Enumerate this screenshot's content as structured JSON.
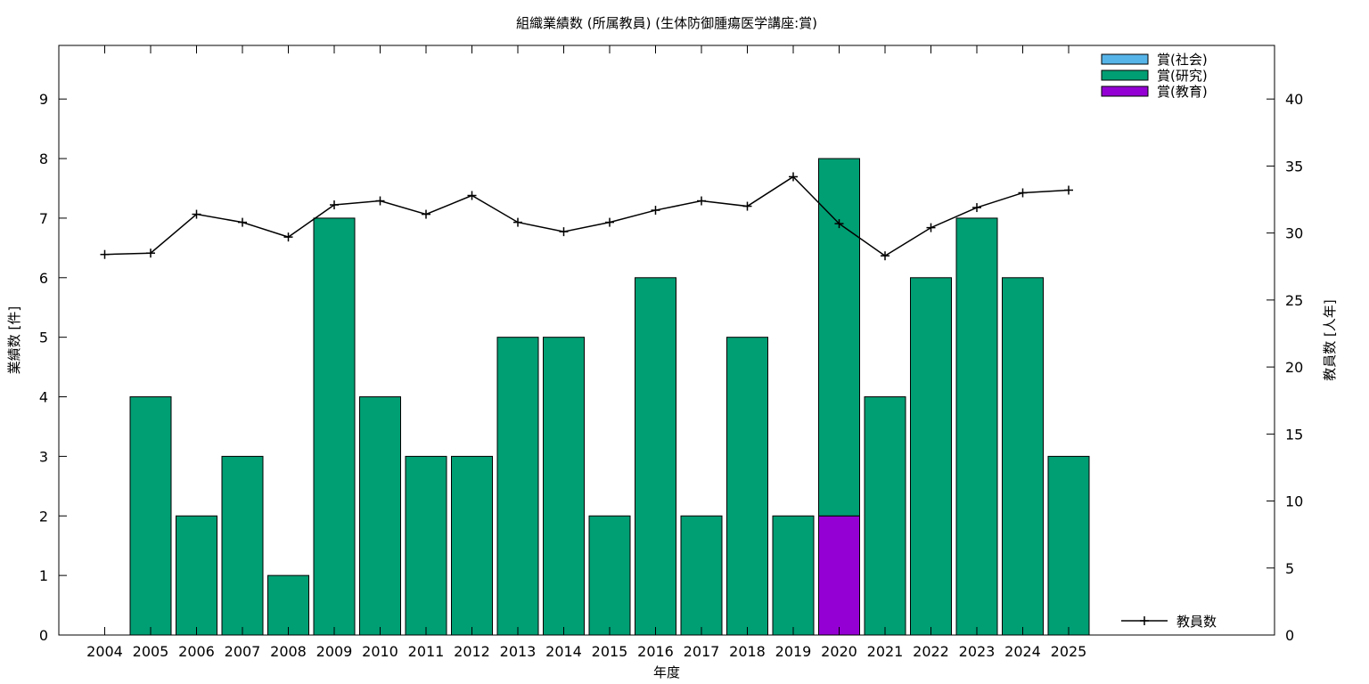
{
  "chart_data": {
    "type": "bar",
    "title": "組織業績数 (所属教員) (生体防御腫瘍医学講座:賞)",
    "xlabel": "年度",
    "ylabel": "業績数 [件]",
    "y2label": "教員数 [人年]",
    "categories": [
      "2004",
      "2005",
      "2006",
      "2007",
      "2008",
      "2009",
      "2010",
      "2011",
      "2012",
      "2013",
      "2014",
      "2015",
      "2016",
      "2017",
      "2018",
      "2019",
      "2020",
      "2021",
      "2022",
      "2023",
      "2024",
      "2025"
    ],
    "ylim": [
      0,
      9.9
    ],
    "y2lim": [
      0,
      44
    ],
    "yticks": [
      "0",
      "1",
      "2",
      "3",
      "4",
      "5",
      "6",
      "7",
      "8",
      "9"
    ],
    "y2ticks": [
      "0",
      "5",
      "10",
      "15",
      "20",
      "25",
      "30",
      "35",
      "40"
    ],
    "stacked": true,
    "series": [
      {
        "name": "賞(教育)",
        "color": "#9400d3",
        "values": [
          0,
          0,
          0,
          0,
          0,
          0,
          0,
          0,
          0,
          0,
          0,
          0,
          0,
          0,
          0,
          0,
          2,
          0,
          0,
          0,
          0,
          0
        ]
      },
      {
        "name": "賞(研究)",
        "color": "#009e73",
        "values": [
          0,
          4,
          2,
          3,
          1,
          7,
          4,
          3,
          3,
          5,
          5,
          2,
          6,
          2,
          5,
          2,
          6,
          4,
          6,
          7,
          6,
          3
        ]
      },
      {
        "name": "賞(社会)",
        "color": "#56b4e9",
        "values": [
          0,
          0,
          0,
          0,
          0,
          0,
          0,
          0,
          0,
          0,
          0,
          0,
          0,
          0,
          0,
          0,
          0,
          0,
          0,
          0,
          0,
          0
        ]
      }
    ],
    "legend_order": [
      "賞(社会)",
      "賞(研究)",
      "賞(教育)"
    ],
    "legend_placement": "top-right",
    "line_series": {
      "name": "教員数",
      "axis": "y2",
      "color": "#000000",
      "values": [
        28.4,
        28.5,
        31.4,
        30.8,
        29.7,
        32.1,
        32.4,
        31.4,
        32.8,
        30.8,
        30.1,
        30.8,
        31.7,
        32.4,
        32.0,
        34.2,
        30.7,
        28.3,
        30.4,
        31.9,
        33.0,
        33.2
      ]
    },
    "line_legend_placement": "bottom-right"
  }
}
